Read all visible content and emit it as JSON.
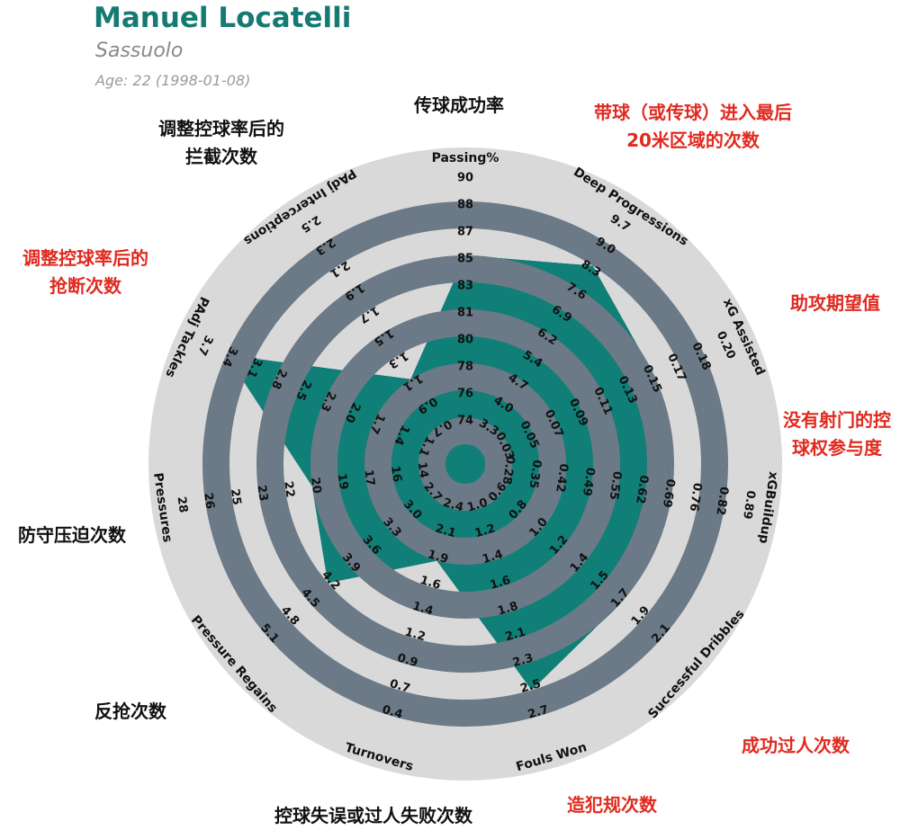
{
  "header": {
    "player_name": "Manuel Locatelli",
    "team": "Sassuolo",
    "age_label": "Age: 22 (1998-01-08)"
  },
  "colors": {
    "title": "#147a72",
    "player_fill": "#0f7f77",
    "rings_dark": "#6b7a86",
    "rings_light": "#d9d9d9",
    "annotation_black": "#111111",
    "annotation_red": "#e02a1f"
  },
  "chart_data": {
    "type": "radar",
    "title": "Manuel Locatelli",
    "subtitle": "Sassuolo",
    "axes": [
      {
        "label": "Passing%",
        "ticks": [
          "74",
          "76",
          "78",
          "80",
          "81",
          "83",
          "85",
          "87",
          "88",
          "90"
        ],
        "value": 85
      },
      {
        "label": "Deep Progressions",
        "ticks": [
          "3.3",
          "4.0",
          "4.7",
          "5.4",
          "6.2",
          "6.9",
          "7.6",
          "8.3",
          "9.0",
          "9.7"
        ],
        "value": 8.3
      },
      {
        "label": "xG Assisted",
        "ticks": [
          "0.03",
          "0.05",
          "0.07",
          "0.09",
          "0.11",
          "0.13",
          "0.15",
          "0.17",
          "0.18",
          "0.20"
        ],
        "value": 0.15
      },
      {
        "label": "xGBuildup",
        "ticks": [
          "0.28",
          "0.35",
          "0.42",
          "0.49",
          "0.55",
          "0.62",
          "0.69",
          "0.76",
          "0.82",
          "0.89"
        ],
        "value": 0.69
      },
      {
        "label": "Successful Dribbles",
        "ticks": [
          "0.6",
          "0.8",
          "1.0",
          "1.2",
          "1.4",
          "1.5",
          "1.7",
          "1.9",
          "2.1"
        ],
        "value": 1.7
      },
      {
        "label": "Fouls Won",
        "ticks": [
          "1.0",
          "1.2",
          "1.4",
          "1.6",
          "1.8",
          "2.1",
          "2.3",
          "2.5",
          "2.7"
        ],
        "value": 2.5
      },
      {
        "label": "Turnovers",
        "ticks": [
          "2.4",
          "2.1",
          "1.9",
          "1.6",
          "1.4",
          "1.2",
          "0.9",
          "0.7",
          "0.4"
        ],
        "value": 1.9
      },
      {
        "label": "Pressure Regains",
        "ticks": [
          "2.7",
          "3.0",
          "3.3",
          "3.6",
          "3.9",
          "4.2",
          "4.5",
          "4.8",
          "5.1"
        ],
        "value": 4.2
      },
      {
        "label": "Pressures",
        "ticks": [
          "14",
          "16",
          "17",
          "19",
          "20",
          "22",
          "23",
          "25",
          "26",
          "28"
        ],
        "value": 20
      },
      {
        "label": "PAdj Tackles",
        "ticks": [
          "1.1",
          "1.4",
          "1.7",
          "2.0",
          "2.3",
          "2.5",
          "2.8",
          "3.1",
          "3.4",
          "3.7"
        ],
        "value": 3.4
      },
      {
        "label": "PAdj Interceptions",
        "ticks": [
          "0.7",
          "0.9",
          "1.1",
          "1.3",
          "1.5",
          "1.7",
          "1.9",
          "2.1",
          "2.3",
          "2.5"
        ],
        "value": 1.1
      }
    ]
  },
  "annotations": [
    {
      "text": "传球成功率",
      "color": "black"
    },
    {
      "text": "带球（或传球）进入最后\n20米区域的次数",
      "color": "red"
    },
    {
      "text": "助攻期望值",
      "color": "red"
    },
    {
      "text": "没有射门的控\n球权参与度",
      "color": "red"
    },
    {
      "text": "成功过人次数",
      "color": "red"
    },
    {
      "text": "造犯规次数",
      "color": "red"
    },
    {
      "text": "控球失误或过人失败次数",
      "color": "black"
    },
    {
      "text": "反抢次数",
      "color": "black"
    },
    {
      "text": "防守压迫次数",
      "color": "black"
    },
    {
      "text": "调整控球率后的\n抢断次数",
      "color": "red"
    },
    {
      "text": "调整控球率后的\n拦截次数",
      "color": "black"
    }
  ]
}
